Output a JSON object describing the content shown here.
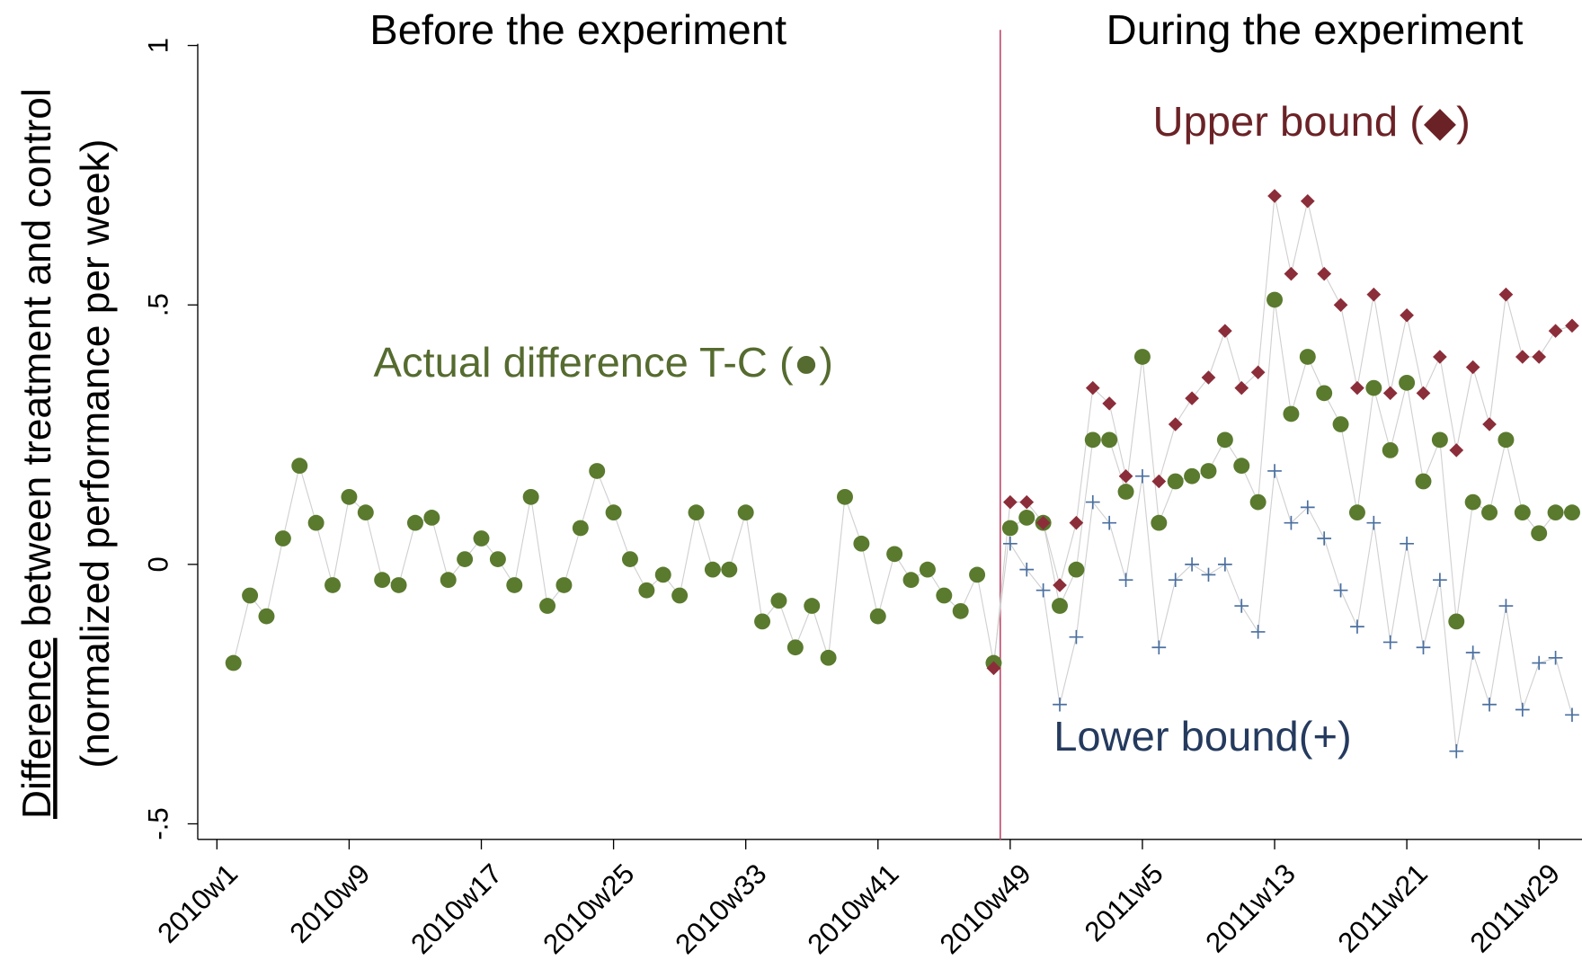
{
  "chart_data": {
    "type": "scatter",
    "ylabel_underlined": "Difference",
    "ylabel": " between treatment and control",
    "ylabel_line2": "(normalized performance per week)",
    "annotations": [
      "Before the experiment",
      "During the experiment",
      "Upper bound (◆)",
      "Actual difference T-C (●)",
      "Lower bound(+)"
    ],
    "vline": 47.4,
    "xlim": [
      -1.16,
      82.6
    ],
    "ylim": [
      -0.53,
      1.03
    ],
    "xticks": [
      {
        "value": 0,
        "label": "2010w1"
      },
      {
        "value": 8,
        "label": "2010w9"
      },
      {
        "value": 16,
        "label": "2010w17"
      },
      {
        "value": 24,
        "label": "2010w25"
      },
      {
        "value": 32,
        "label": "2010w33"
      },
      {
        "value": 40,
        "label": "2010w41"
      },
      {
        "value": 48,
        "label": "2010w49"
      },
      {
        "value": 56,
        "label": "2011w5"
      },
      {
        "value": 64,
        "label": "2011w13"
      },
      {
        "value": 72,
        "label": "2011w21"
      },
      {
        "value": 80,
        "label": "2011w29"
      }
    ],
    "yticks": [
      {
        "value": -0.5,
        "label": "-.5"
      },
      0,
      {
        "value": 0.5,
        "label": ".5"
      },
      1
    ],
    "x": [
      1,
      2,
      3,
      4,
      5,
      6,
      7,
      8,
      9,
      10,
      11,
      12,
      13,
      14,
      15,
      16,
      17,
      18,
      19,
      20,
      21,
      22,
      23,
      24,
      25,
      26,
      27,
      28,
      29,
      30,
      31,
      32,
      33,
      34,
      35,
      36,
      37,
      38,
      39,
      40,
      41,
      42,
      43,
      44,
      45,
      46,
      47,
      48,
      49,
      50,
      51,
      52,
      53,
      54,
      55,
      56,
      57,
      58,
      59,
      60,
      61,
      62,
      63,
      64,
      65,
      66,
      67,
      68,
      69,
      70,
      71,
      72,
      73,
      74,
      75,
      76,
      77,
      78,
      79,
      80,
      81,
      82
    ],
    "series": [
      {
        "name": "Actual difference",
        "marker": "circle",
        "color": "#5a7a2e",
        "values": [
          -0.19,
          -0.06,
          -0.1,
          0.05,
          0.19,
          0.08,
          -0.04,
          0.13,
          0.1,
          -0.03,
          -0.04,
          0.08,
          0.09,
          -0.03,
          0.01,
          0.05,
          0.01,
          -0.04,
          0.13,
          -0.08,
          -0.04,
          0.07,
          0.18,
          0.1,
          0.01,
          -0.05,
          -0.02,
          -0.06,
          0.1,
          -0.01,
          -0.01,
          0.1,
          -0.11,
          -0.07,
          -0.16,
          -0.08,
          -0.18,
          0.13,
          0.04,
          -0.1,
          0.02,
          -0.03,
          -0.01,
          -0.06,
          -0.09,
          -0.02,
          -0.19,
          0.07,
          0.09,
          0.08,
          -0.08,
          -0.01,
          0.24,
          0.24,
          0.14,
          0.4,
          0.08,
          0.16,
          0.17,
          0.18,
          0.24,
          0.19,
          0.12,
          0.51,
          0.29,
          0.4,
          0.33,
          0.27,
          0.1,
          0.34,
          0.22,
          0.35,
          0.16,
          0.24,
          -0.11,
          0.12,
          0.1,
          0.24,
          0.1,
          0.06,
          0.1,
          0.1
        ]
      },
      {
        "name": "Upper bound",
        "marker": "diamond",
        "color": "#8b2e3a",
        "values": [
          null,
          null,
          null,
          null,
          null,
          null,
          null,
          null,
          null,
          null,
          null,
          null,
          null,
          null,
          null,
          null,
          null,
          null,
          null,
          null,
          null,
          null,
          null,
          null,
          null,
          null,
          null,
          null,
          null,
          null,
          null,
          null,
          null,
          null,
          null,
          null,
          null,
          null,
          null,
          null,
          null,
          null,
          null,
          null,
          null,
          null,
          -0.2,
          0.12,
          0.12,
          0.08,
          -0.04,
          0.08,
          0.34,
          0.31,
          0.17,
          null,
          0.16,
          0.27,
          0.32,
          0.36,
          0.45,
          0.34,
          0.37,
          0.71,
          0.56,
          0.7,
          0.56,
          0.5,
          0.34,
          0.52,
          0.33,
          0.48,
          0.33,
          0.4,
          0.22,
          0.38,
          0.27,
          0.52,
          0.4,
          0.4,
          0.45,
          0.46
        ]
      },
      {
        "name": "Lower bound",
        "marker": "plus",
        "color": "#4a6fa0",
        "values": [
          null,
          null,
          null,
          null,
          null,
          null,
          null,
          null,
          null,
          null,
          null,
          null,
          null,
          null,
          null,
          null,
          null,
          null,
          null,
          null,
          null,
          null,
          null,
          null,
          null,
          null,
          null,
          null,
          null,
          null,
          null,
          null,
          null,
          null,
          null,
          null,
          null,
          null,
          null,
          null,
          null,
          null,
          null,
          null,
          null,
          null,
          null,
          0.04,
          -0.01,
          -0.05,
          -0.27,
          -0.14,
          0.12,
          0.08,
          -0.03,
          0.17,
          -0.16,
          -0.03,
          0.0,
          -0.02,
          0.0,
          -0.08,
          -0.13,
          0.18,
          0.08,
          0.11,
          0.05,
          -0.05,
          -0.12,
          0.08,
          -0.15,
          0.04,
          -0.16,
          -0.03,
          -0.36,
          -0.17,
          -0.27,
          -0.08,
          -0.28,
          -0.19,
          -0.18,
          -0.29
        ]
      }
    ]
  }
}
